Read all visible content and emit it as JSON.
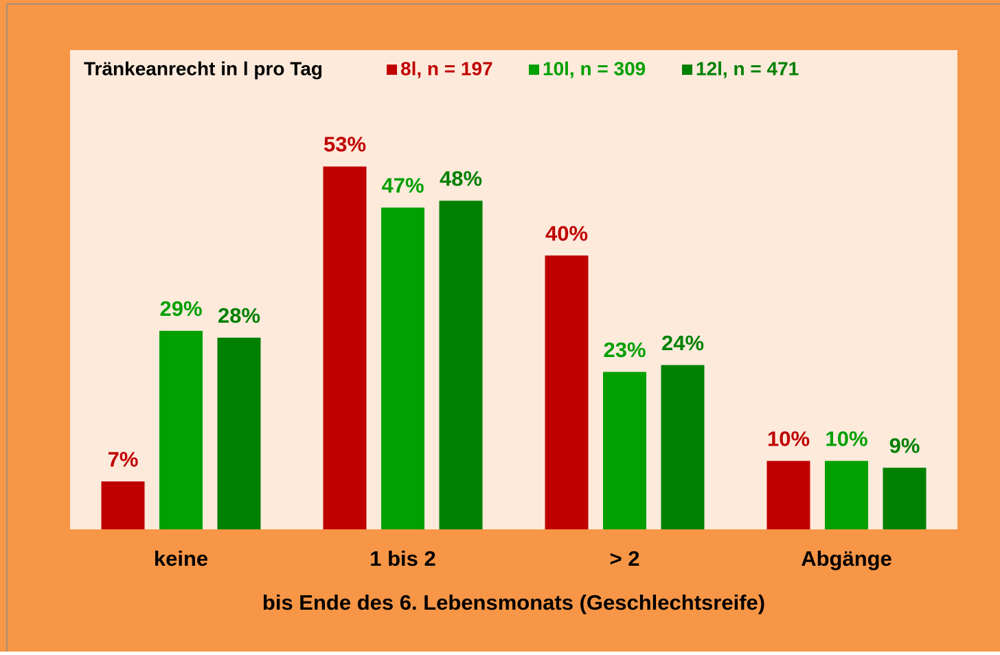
{
  "chart_data": {
    "type": "bar",
    "legend_title": "Tränkeanrecht  in l pro Tag",
    "x_label": "bis  Ende des 6. Lebensmonats (Geschlechtsreife)",
    "categories": [
      "keine",
      "1 bis 2",
      "> 2",
      "Abgänge"
    ],
    "series": [
      {
        "name": "8l, n = 197",
        "color": "#c00000",
        "values": [
          7,
          53,
          40,
          10
        ],
        "value_labels": [
          "7%",
          "53%",
          "40%",
          "10%"
        ]
      },
      {
        "name": "10l, n = 309",
        "color": "#00a000",
        "values": [
          29,
          47,
          23,
          10
        ],
        "value_labels": [
          "29%",
          "47%",
          "23%",
          "10%"
        ]
      },
      {
        "name": "12l, n = 471",
        "color": "#008000",
        "values": [
          28,
          48,
          24,
          9
        ],
        "value_labels": [
          "28%",
          "48%",
          "24%",
          "9%"
        ]
      }
    ],
    "ylim": [
      0,
      70
    ]
  }
}
